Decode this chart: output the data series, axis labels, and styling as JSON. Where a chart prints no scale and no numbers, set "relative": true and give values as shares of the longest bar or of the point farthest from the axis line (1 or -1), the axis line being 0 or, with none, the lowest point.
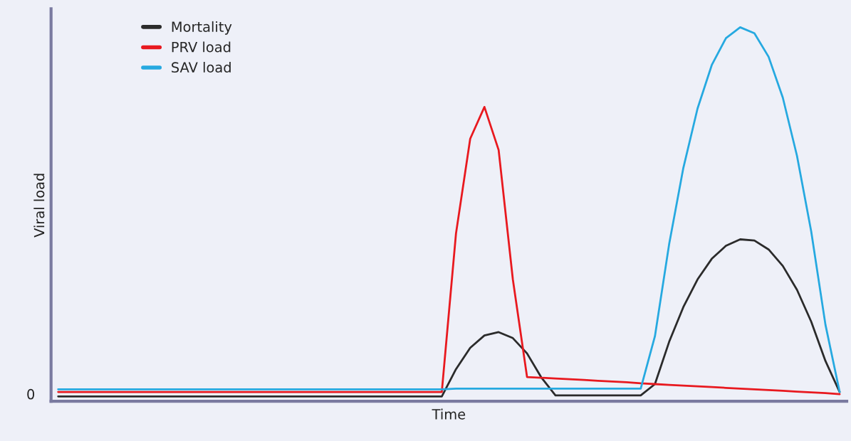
{
  "chart_data": {
    "type": "line",
    "relative": true,
    "xlabel": "Time",
    "ylabel": "Viral load",
    "annotations": [
      "0"
    ],
    "legend": "top left",
    "grid": false,
    "marker": "none",
    "line_style": "solid",
    "categories": [
      null,
      null,
      null,
      null,
      null,
      null,
      null,
      null,
      null,
      null,
      null,
      null,
      null,
      null,
      null,
      null,
      null,
      null,
      null,
      null,
      null,
      null,
      null,
      null,
      null,
      null,
      null,
      null,
      null,
      null,
      null,
      null,
      null,
      null,
      null,
      null,
      null,
      null,
      null,
      null,
      null,
      null,
      null,
      null,
      null,
      null,
      null,
      null,
      null,
      null,
      null,
      null,
      null,
      null,
      null,
      null
    ],
    "series": [
      {
        "name": "Mortality",
        "color": "#2b2b2b",
        "values": [
          0.013,
          0.013,
          0.013,
          0.013,
          0.013,
          0.013,
          0.013,
          0.013,
          0.013,
          0.013,
          0.013,
          0.013,
          0.013,
          0.013,
          0.013,
          0.013,
          0.013,
          0.013,
          0.013,
          0.013,
          0.013,
          0.013,
          0.013,
          0.013,
          0.013,
          0.013,
          0.013,
          0.013,
          0.086,
          0.143,
          0.176,
          0.185,
          0.169,
          0.128,
          0.064,
          0.016,
          0.016,
          0.016,
          0.016,
          0.016,
          0.016,
          0.016,
          0.046,
          0.159,
          0.252,
          0.326,
          0.381,
          0.416,
          0.433,
          0.43,
          0.406,
          0.362,
          0.298,
          0.213,
          0.108,
          0.025
        ]
      },
      {
        "name": "PRV load",
        "color": "#e8191f",
        "values": [
          0.025,
          0.025,
          0.025,
          0.025,
          0.025,
          0.025,
          0.025,
          0.025,
          0.025,
          0.025,
          0.025,
          0.025,
          0.025,
          0.025,
          0.025,
          0.025,
          0.025,
          0.025,
          0.025,
          0.025,
          0.025,
          0.025,
          0.025,
          0.025,
          0.025,
          0.025,
          0.025,
          0.025,
          0.449,
          0.702,
          0.787,
          0.672,
          0.326,
          0.065,
          0.063,
          0.061,
          0.059,
          0.057,
          0.055,
          0.053,
          0.051,
          0.048,
          0.046,
          0.044,
          0.042,
          0.04,
          0.038,
          0.036,
          0.034,
          0.032,
          0.03,
          0.028,
          0.026,
          0.024,
          0.022,
          0.019
        ]
      },
      {
        "name": "SAV load",
        "color": "#26a9e0",
        "values": [
          0.032,
          0.032,
          0.032,
          0.032,
          0.032,
          0.032,
          0.032,
          0.032,
          0.032,
          0.032,
          0.032,
          0.032,
          0.032,
          0.032,
          0.032,
          0.032,
          0.032,
          0.032,
          0.032,
          0.032,
          0.032,
          0.032,
          0.032,
          0.032,
          0.032,
          0.032,
          0.032,
          0.032,
          0.034,
          0.034,
          0.034,
          0.034,
          0.034,
          0.034,
          0.034,
          0.034,
          0.034,
          0.034,
          0.034,
          0.034,
          0.034,
          0.034,
          0.174,
          0.42,
          0.624,
          0.783,
          0.899,
          0.971,
          1.0,
          0.984,
          0.921,
          0.812,
          0.656,
          0.454,
          0.205,
          0.025
        ]
      }
    ]
  }
}
